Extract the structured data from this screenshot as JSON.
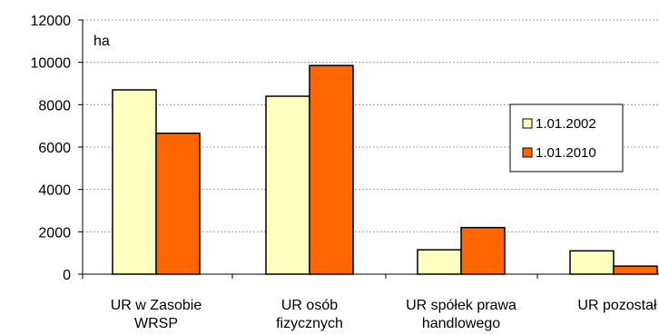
{
  "chart_data": {
    "type": "bar",
    "unit_label": "ha",
    "categories": [
      [
        "UR w Zasobie",
        "WRSP"
      ],
      [
        "UR osób",
        "fizycznych"
      ],
      [
        "UR spółek prawa",
        "handlowego"
      ],
      [
        "UR pozostał"
      ]
    ],
    "series": [
      {
        "name": "1.01.2002",
        "color": "#ffffc0",
        "values": [
          8700,
          8400,
          1150,
          1100
        ]
      },
      {
        "name": "1.01.2010",
        "color": "#ff6600",
        "values": [
          6650,
          9850,
          2200,
          380
        ]
      }
    ],
    "ylim": [
      0,
      12000
    ],
    "yticks": [
      0,
      2000,
      4000,
      6000,
      8000,
      10000,
      12000
    ],
    "grid": true,
    "legend_position": "right"
  }
}
